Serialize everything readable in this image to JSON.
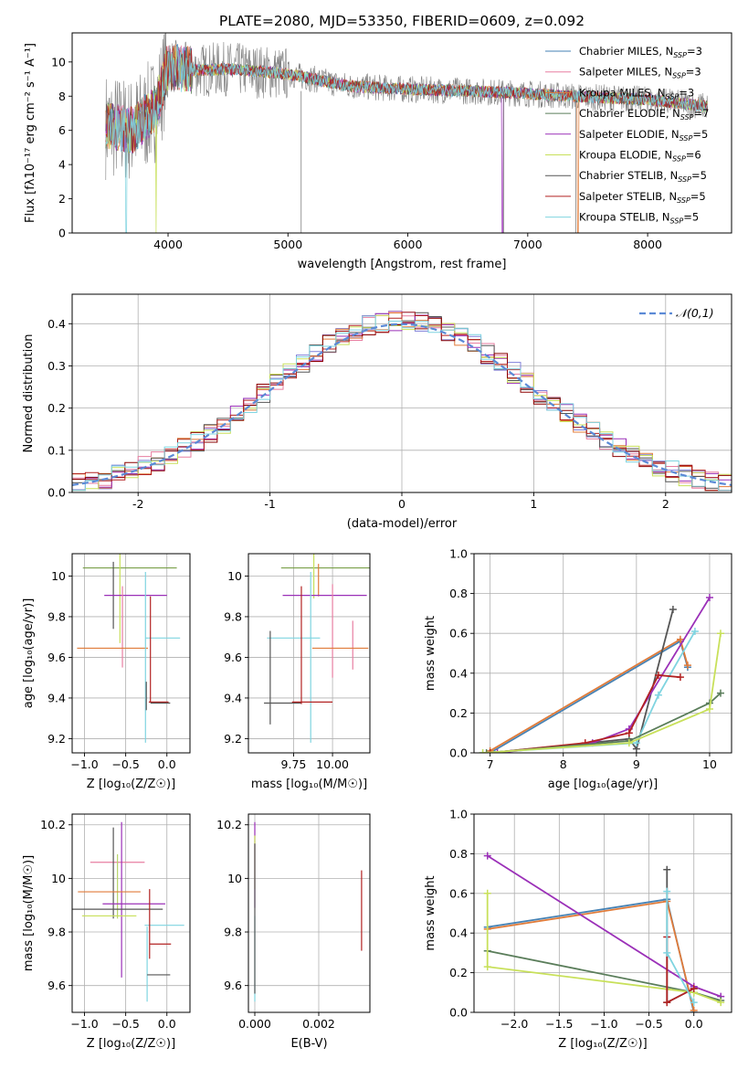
{
  "figure_title": "PLATE=2080, MJD=53350, FIBERID=0609, z=0.092",
  "series_colors": [
    "#4682b4",
    "#e87ea1",
    "#e07b39",
    "#5a7d5a",
    "#9b30b8",
    "#c8e05a",
    "#555555",
    "#b22222",
    "#7fd4e0"
  ],
  "chart_data": [
    {
      "id": "spectrum",
      "type": "line",
      "title": "PLATE=2080, MJD=53350, FIBERID=0609, z=0.092",
      "xlabel": "wavelength [Angstrom, rest frame]",
      "ylabel": "Flux [fλ10⁻¹⁷ erg cm⁻² s⁻¹ A⁻¹]",
      "xlim": [
        3200,
        8700
      ],
      "ylim": [
        0,
        11.7
      ],
      "xticks": [
        4000,
        5000,
        6000,
        7000,
        8000
      ],
      "yticks": [
        0,
        2,
        4,
        6,
        8,
        10
      ],
      "grid": false,
      "legend_position": "top-right",
      "legend": [
        "Chabrier MILES, N_SSP=3",
        "Salpeter MILES, N_SSP=3",
        "Kroupa MILES, N_SSP=3",
        "Chabrier ELODIE, N_SSP=7",
        "Salpeter ELODIE, N_SSP=5",
        "Kroupa ELODIE, N_SSP=6",
        "Chabrier STELIB, N_SSP=5",
        "Salpeter STELIB, N_SSP=5",
        "Kroupa STELIB, N_SSP=5"
      ],
      "data_series": {
        "name": "data",
        "color": "#808080",
        "x_range": [
          3480,
          8500
        ],
        "level": 8.3
      },
      "model_continuum": {
        "x": [
          3480,
          3700,
          3900,
          4000,
          4200,
          4500,
          5000,
          5500,
          6000,
          6500,
          7000,
          7500,
          8000,
          8500
        ],
        "y": [
          6.3,
          6.0,
          7.3,
          9.8,
          9.5,
          9.6,
          9.3,
          8.6,
          8.4,
          8.3,
          8.15,
          7.95,
          7.8,
          7.4
        ]
      }
    },
    {
      "id": "residuals",
      "type": "bar",
      "xlabel": "(data-model)/error",
      "ylabel": "Normed distribution",
      "xlim": [
        -2.5,
        2.5
      ],
      "ylim": [
        0,
        0.47
      ],
      "xticks": [
        -2,
        -1,
        0,
        1,
        2
      ],
      "yticks": [
        0.0,
        0.1,
        0.2,
        0.3,
        0.4
      ],
      "grid": true,
      "legend_position": "top-right",
      "reference_curve": {
        "name": "𝒩(0,1)",
        "mu": 0,
        "sigma": 1,
        "style": "dashed",
        "color": "#5b8ad6"
      },
      "bin_width": 0.1,
      "bin_start": -2.5,
      "histogram_colors": [
        "#7f7fd9",
        "#e87ea1",
        "#e07b39",
        "#555555",
        "#9b30b8",
        "#c8e05a",
        "#8b0000",
        "#b22222",
        "#7fd4e0"
      ]
    },
    {
      "id": "age-vs-Z",
      "type": "scatter",
      "xlabel": "Z [log₁₀(Z/Z☉)]",
      "ylabel": "age  [log₁₀(age/yr)]",
      "xlim": [
        -1.15,
        0.28
      ],
      "ylim": [
        9.13,
        10.11
      ],
      "xticks": [
        -1.0,
        -0.5,
        0.0
      ],
      "xticklabels": [
        "−1.0",
        "−0.5",
        "0.0"
      ],
      "yticks": [
        9.2,
        9.4,
        9.6,
        9.8,
        10.0
      ],
      "grid": true,
      "points": [
        {
          "x": -0.45,
          "xerr": [
            0.57,
            0.57
          ],
          "y": 10.04,
          "yerr": [
            0.0,
            0.0
          ],
          "color": "#7aa04a"
        },
        {
          "x": -0.65,
          "xerr": [
            0.0,
            0.0
          ],
          "y": 9.93,
          "yerr": [
            0.19,
            0.14
          ],
          "color": "#555555"
        },
        {
          "x": -0.57,
          "xerr": [
            0.0,
            0.0
          ],
          "y": 9.88,
          "yerr": [
            0.21,
            0.23
          ],
          "color": "#c8e05a"
        },
        {
          "x": -0.38,
          "xerr": [
            0.38,
            0.38
          ],
          "y": 9.905,
          "yerr": [
            0.0,
            0.0
          ],
          "color": "#9b30b8"
        },
        {
          "x": -0.54,
          "xerr": [
            0.0,
            0.0
          ],
          "y": 9.75,
          "yerr": [
            0.2,
            0.2
          ],
          "color": "#e87ea1"
        },
        {
          "x": -0.66,
          "xerr": [
            0.43,
            0.43
          ],
          "y": 9.645,
          "yerr": [
            0.0,
            0.0
          ],
          "color": "#e07b39"
        },
        {
          "x": -0.26,
          "xerr": [
            0.0,
            0.0
          ],
          "y": 9.6,
          "yerr": [
            0.42,
            0.42
          ],
          "color": "#7fd4e0"
        },
        {
          "x": -0.05,
          "xerr": [
            0.21,
            0.21
          ],
          "y": 9.695,
          "yerr": [
            0.0,
            0.0
          ],
          "color": "#7fd4e0"
        },
        {
          "x": -0.2,
          "xerr": [
            0.0,
            0.0
          ],
          "y": 9.64,
          "yerr": [
            0.26,
            0.26
          ],
          "color": "#b22222"
        },
        {
          "x": -0.1,
          "xerr": [
            0.12,
            0.12
          ],
          "y": 9.38,
          "yerr": [
            0.0,
            0.0
          ],
          "color": "#b22222"
        },
        {
          "x": -0.25,
          "xerr": [
            0.0,
            0.0
          ],
          "y": 9.41,
          "yerr": [
            0.07,
            0.07
          ],
          "color": "#555555"
        },
        {
          "x": -0.08,
          "xerr": [
            0.12,
            0.12
          ],
          "y": 9.375,
          "yerr": [
            0.0,
            0.0
          ],
          "color": "#555555"
        }
      ]
    },
    {
      "id": "age-vs-mass",
      "type": "scatter",
      "xlabel": "mass [log₁₀(M/M☉)]",
      "ylabel": "",
      "xlim": [
        9.46,
        10.24
      ],
      "ylim": [
        9.13,
        10.11
      ],
      "xticks": [
        9.75,
        10.0
      ],
      "xticklabels": [
        "9.75",
        "10.00"
      ],
      "yticks": [
        9.2,
        9.4,
        9.6,
        9.8,
        10.0
      ],
      "grid": true,
      "points": [
        {
          "x": 9.97,
          "xerr": [
            0.3,
            0.3
          ],
          "y": 10.04,
          "yerr": [
            0.0,
            0.0
          ],
          "color": "#7aa04a"
        },
        {
          "x": 9.88,
          "xerr": [
            0.0,
            0.0
          ],
          "y": 10.0,
          "yerr": [
            0.11,
            0.11
          ],
          "color": "#c8e05a"
        },
        {
          "x": 9.91,
          "xerr": [
            0.0,
            0.0
          ],
          "y": 9.98,
          "yerr": [
            0.08,
            0.08
          ],
          "color": "#e07b39"
        },
        {
          "x": 9.95,
          "xerr": [
            0.27,
            0.27
          ],
          "y": 9.905,
          "yerr": [
            0.0,
            0.0
          ],
          "color": "#9b30b8"
        },
        {
          "x": 10.0,
          "xerr": [
            0.0,
            0.0
          ],
          "y": 9.73,
          "yerr": [
            0.23,
            0.23
          ],
          "color": "#e87ea1"
        },
        {
          "x": 10.13,
          "xerr": [
            0.0,
            0.0
          ],
          "y": 9.66,
          "yerr": [
            0.12,
            0.12
          ],
          "color": "#e87ea1"
        },
        {
          "x": 10.05,
          "xerr": [
            0.18,
            0.18
          ],
          "y": 9.645,
          "yerr": [
            0.0,
            0.0
          ],
          "color": "#e07b39"
        },
        {
          "x": 9.75,
          "xerr": [
            0.17,
            0.17
          ],
          "y": 9.695,
          "yerr": [
            0.0,
            0.0
          ],
          "color": "#7fd4e0"
        },
        {
          "x": 9.86,
          "xerr": [
            0.0,
            0.0
          ],
          "y": 9.6,
          "yerr": [
            0.42,
            0.42
          ],
          "color": "#7fd4e0"
        },
        {
          "x": 9.6,
          "xerr": [
            0.0,
            0.0
          ],
          "y": 9.5,
          "yerr": [
            0.23,
            0.23
          ],
          "color": "#555555"
        },
        {
          "x": 9.68,
          "xerr": [
            0.12,
            0.12
          ],
          "y": 9.375,
          "yerr": [
            0.0,
            0.0
          ],
          "color": "#555555"
        },
        {
          "x": 9.8,
          "xerr": [
            0.0,
            0.0
          ],
          "y": 9.66,
          "yerr": [
            0.29,
            0.29
          ],
          "color": "#b22222"
        },
        {
          "x": 9.87,
          "xerr": [
            0.13,
            0.13
          ],
          "y": 9.38,
          "yerr": [
            0.0,
            0.0
          ],
          "color": "#b22222"
        }
      ]
    },
    {
      "id": "weight-vs-age",
      "type": "line",
      "xlabel": "age  [log₁₀(age/yr)]",
      "ylabel": "mass weight",
      "xlim": [
        6.78,
        10.3
      ],
      "ylim": [
        0,
        1.0
      ],
      "xticks": [
        7,
        8,
        9,
        10
      ],
      "yticks": [
        0.0,
        0.2,
        0.4,
        0.6,
        0.8,
        1.0
      ],
      "grid": true,
      "series": [
        {
          "color": "#4682b4",
          "x": [
            7.0,
            9.6,
            9.7
          ],
          "y": [
            0.0,
            0.56,
            0.43
          ]
        },
        {
          "color": "#e07b39",
          "x": [
            7.0,
            9.6,
            9.7
          ],
          "y": [
            0.01,
            0.57,
            0.44
          ]
        },
        {
          "color": "#555555",
          "x": [
            7.0,
            8.9,
            9.0,
            9.5
          ],
          "y": [
            0.0,
            0.07,
            0.02,
            0.72
          ]
        },
        {
          "color": "#9b30b8",
          "x": [
            7.1,
            8.4,
            8.9,
            10.0
          ],
          "y": [
            0.0,
            0.05,
            0.12,
            0.78
          ]
        },
        {
          "color": "#7fd4e0",
          "x": [
            6.9,
            9.0,
            9.3,
            9.8
          ],
          "y": [
            0.0,
            0.05,
            0.29,
            0.61
          ]
        },
        {
          "color": "#b22222",
          "x": [
            7.0,
            8.3,
            8.9,
            9.3,
            9.6
          ],
          "y": [
            0.0,
            0.05,
            0.1,
            0.39,
            0.38
          ]
        },
        {
          "color": "#5a7d5a",
          "x": [
            6.95,
            8.9,
            10.0,
            10.15
          ],
          "y": [
            0.0,
            0.06,
            0.25,
            0.3
          ]
        },
        {
          "color": "#c8e05a",
          "x": [
            6.9,
            8.9,
            10.0,
            10.15
          ],
          "y": [
            0.0,
            0.05,
            0.22,
            0.6
          ]
        }
      ]
    },
    {
      "id": "mass-vs-Z",
      "type": "scatter",
      "xlabel": "Z [log₁₀(Z/Z☉)]",
      "ylabel": "mass [log₁₀(M/M☉)]",
      "xlim": [
        -1.15,
        0.28
      ],
      "ylim": [
        9.5,
        10.24
      ],
      "xticks": [
        -1.0,
        -0.5,
        0.0
      ],
      "xticklabels": [
        "−1.0",
        "−0.5",
        "0.0"
      ],
      "yticks": [
        9.6,
        9.8,
        10.0,
        10.2
      ],
      "grid": true,
      "points": [
        {
          "x": -0.6,
          "xerr": [
            0.33,
            0.33
          ],
          "y": 10.06,
          "yerr": [
            0.0,
            0.0
          ],
          "color": "#e87ea1"
        },
        {
          "x": -0.6,
          "xerr": [
            0.0,
            0.0
          ],
          "y": 9.97,
          "yerr": [
            0.12,
            0.12
          ],
          "color": "#b8d66a"
        },
        {
          "x": -0.65,
          "xerr": [
            0.0,
            0.0
          ],
          "y": 10.02,
          "yerr": [
            0.17,
            0.17
          ],
          "color": "#555555"
        },
        {
          "x": -0.55,
          "xerr": [
            0.0,
            0.0
          ],
          "y": 9.92,
          "yerr": [
            0.29,
            0.29
          ],
          "color": "#9b30b8"
        },
        {
          "x": -0.7,
          "xerr": [
            0.38,
            0.38
          ],
          "y": 9.95,
          "yerr": [
            0.0,
            0.0
          ],
          "color": "#e07b39"
        },
        {
          "x": -0.7,
          "xerr": [
            0.33,
            0.33
          ],
          "y": 9.86,
          "yerr": [
            0.0,
            0.0
          ],
          "color": "#c8e05a"
        },
        {
          "x": -0.65,
          "xerr": [
            0.6,
            0.6
          ],
          "y": 9.885,
          "yerr": [
            0.0,
            0.0
          ],
          "color": "#555555"
        },
        {
          "x": -0.4,
          "xerr": [
            0.38,
            0.38
          ],
          "y": 9.905,
          "yerr": [
            0.0,
            0.0
          ],
          "color": "#9b30b8"
        },
        {
          "x": -0.24,
          "xerr": [
            0.0,
            0.0
          ],
          "y": 9.68,
          "yerr": [
            0.14,
            0.14
          ],
          "color": "#7fd4e0"
        },
        {
          "x": -0.03,
          "xerr": [
            0.24,
            0.24
          ],
          "y": 9.825,
          "yerr": [
            0.0,
            0.0
          ],
          "color": "#7fd4e0"
        },
        {
          "x": -0.21,
          "xerr": [
            0.0,
            0.0
          ],
          "y": 9.83,
          "yerr": [
            0.13,
            0.13
          ],
          "color": "#b22222"
        },
        {
          "x": -0.08,
          "xerr": [
            0.13,
            0.13
          ],
          "y": 9.755,
          "yerr": [
            0.0,
            0.0
          ],
          "color": "#b22222"
        },
        {
          "x": -0.1,
          "xerr": [
            0.14,
            0.14
          ],
          "y": 9.64,
          "yerr": [
            0.0,
            0.0
          ],
          "color": "#555555"
        }
      ]
    },
    {
      "id": "mass-vs-EBV",
      "type": "scatter",
      "xlabel": "E(B-V)",
      "ylabel": "",
      "xlim": [
        -0.0002,
        0.0036
      ],
      "ylim": [
        9.5,
        10.24
      ],
      "xticks": [
        0.0,
        0.002
      ],
      "xticklabels": [
        "0.000",
        "0.002"
      ],
      "yticks": [
        9.6,
        9.8,
        10.0,
        10.2
      ],
      "grid": true,
      "points": [
        {
          "x": 0.0,
          "xerr": [
            0.0,
            0.0
          ],
          "y": 10.05,
          "yerr": [
            0.16,
            0.16
          ],
          "color": "#9b30b8"
        },
        {
          "x": 0.0,
          "xerr": [
            0.0,
            0.0
          ],
          "y": 10.06,
          "yerr": [
            0.1,
            0.1
          ],
          "color": "#c8e05a"
        },
        {
          "x": 0.0,
          "xerr": [
            0.0,
            0.0
          ],
          "y": 9.7,
          "yerr": [
            0.16,
            0.16
          ],
          "color": "#7fd4e0"
        },
        {
          "x": 0.0,
          "xerr": [
            0.0,
            0.0
          ],
          "y": 9.85,
          "yerr": [
            0.28,
            0.28
          ],
          "color": "#555555"
        },
        {
          "x": 0.00334,
          "xerr": [
            0.0,
            0.0
          ],
          "y": 9.88,
          "yerr": [
            0.15,
            0.15
          ],
          "color": "#b22222"
        }
      ]
    },
    {
      "id": "weight-vs-Z",
      "type": "line",
      "xlabel": "Z [log₁₀(Z/Z☉)]",
      "ylabel": "mass weight",
      "xlim": [
        -2.45,
        0.42
      ],
      "ylim": [
        0,
        1.0
      ],
      "xticks": [
        -2.0,
        -1.5,
        -1.0,
        -0.5,
        0.0
      ],
      "xticklabels": [
        "−2.0",
        "−1.5",
        "−1.0",
        "−0.5",
        "0.0"
      ],
      "yticks": [
        0.0,
        0.2,
        0.4,
        0.6,
        0.8,
        1.0
      ],
      "grid": true,
      "series": [
        {
          "color": "#4682b4",
          "x": [
            -2.3,
            -0.3,
            0.0
          ],
          "y": [
            0.43,
            0.57,
            0.0
          ]
        },
        {
          "color": "#e07b39",
          "x": [
            -2.3,
            -0.3,
            0.0
          ],
          "y": [
            0.42,
            0.56,
            0.01
          ]
        },
        {
          "color": "#9b30b8",
          "x": [
            -2.3,
            0.0,
            0.3
          ],
          "y": [
            0.79,
            0.13,
            0.08
          ]
        },
        {
          "color": "#5a7d5a",
          "x": [
            -2.3,
            0.0,
            0.3
          ],
          "y": [
            0.31,
            0.1,
            0.06
          ]
        },
        {
          "color": "#c8e05a",
          "x": [
            -2.3,
            -2.3,
            0.0,
            0.3
          ],
          "y": [
            0.6,
            0.23,
            0.1,
            0.05
          ]
        },
        {
          "color": "#555555",
          "x": [
            -0.3,
            -0.3,
            0.0
          ],
          "y": [
            0.72,
            0.05,
            0.12
          ]
        },
        {
          "color": "#b22222",
          "x": [
            -0.3,
            -0.3,
            0.0
          ],
          "y": [
            0.38,
            0.05,
            0.12
          ]
        },
        {
          "color": "#7fd4e0",
          "x": [
            -0.3,
            -0.3,
            0.0
          ],
          "y": [
            0.61,
            0.3,
            0.05
          ]
        }
      ]
    }
  ]
}
